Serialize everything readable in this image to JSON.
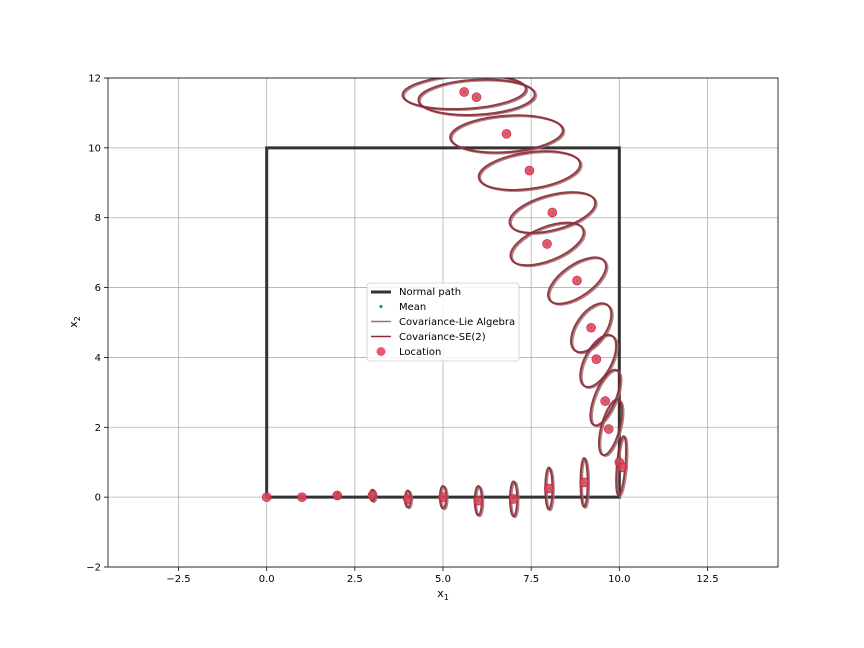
{
  "chart_data": {
    "type": "scatter",
    "xlabel": "x",
    "xlabel_sub": "1",
    "ylabel": "x",
    "ylabel_sub": "2",
    "xlim": [
      -4.5,
      14.5
    ],
    "ylim": [
      -2,
      12
    ],
    "grid": true,
    "legend_position": "center",
    "x_ticks": [
      -2.5,
      0.0,
      2.5,
      5.0,
      7.5,
      10.0,
      12.5
    ],
    "x_tick_labels": [
      "−2.5",
      "0.0",
      "2.5",
      "5.0",
      "7.5",
      "10.0",
      "12.5"
    ],
    "y_ticks": [
      -2,
      0,
      2,
      4,
      6,
      8,
      10,
      12
    ],
    "y_tick_labels": [
      "−2",
      "0",
      "2",
      "4",
      "6",
      "8",
      "10",
      "12"
    ],
    "colors": {
      "normal_path": "#333333",
      "mean": "#2ca02c",
      "cov_lie": "#a07070",
      "cov_se2": "#8b2a36",
      "location": "#e8385a"
    },
    "series": [
      {
        "name": "Normal path",
        "kind": "line",
        "points": [
          [
            0,
            0
          ],
          [
            10,
            0
          ],
          [
            10,
            10
          ],
          [
            0,
            10
          ],
          [
            0,
            0
          ]
        ]
      },
      {
        "name": "Mean",
        "kind": "points"
      },
      {
        "name": "Covariance-Lie Algebra",
        "kind": "ellipse"
      },
      {
        "name": "Covariance-SE(2)",
        "kind": "ellipse"
      },
      {
        "name": "Location",
        "kind": "scatter",
        "points": [
          [
            0.0,
            0.0
          ],
          [
            1.0,
            0.0
          ],
          [
            2.0,
            0.05
          ],
          [
            3.0,
            0.05
          ],
          [
            4.0,
            -0.05
          ],
          [
            5.0,
            0.0
          ],
          [
            6.0,
            -0.1
          ],
          [
            7.0,
            -0.05
          ],
          [
            8.0,
            0.25
          ],
          [
            9.0,
            0.42
          ],
          [
            10.0,
            1.0
          ],
          [
            10.1,
            0.85
          ],
          [
            9.7,
            1.95
          ],
          [
            9.6,
            2.75
          ],
          [
            9.35,
            3.95
          ],
          [
            9.2,
            4.85
          ],
          [
            8.8,
            6.2
          ],
          [
            7.95,
            7.25
          ],
          [
            8.1,
            8.15
          ],
          [
            7.45,
            9.35
          ],
          [
            6.8,
            10.4
          ],
          [
            5.95,
            11.45
          ],
          [
            5.6,
            11.6
          ]
        ]
      }
    ],
    "ellipses": [
      {
        "cx": 0.0,
        "cy": 0.0,
        "rx": 0.02,
        "ry": 0.02,
        "angle": 0
      },
      {
        "cx": 1.0,
        "cy": 0.0,
        "rx": 0.04,
        "ry": 0.04,
        "angle": 0
      },
      {
        "cx": 2.0,
        "cy": 0.05,
        "rx": 0.05,
        "ry": 0.08,
        "angle": 0
      },
      {
        "cx": 3.0,
        "cy": 0.05,
        "rx": 0.07,
        "ry": 0.16,
        "angle": 0
      },
      {
        "cx": 4.0,
        "cy": -0.05,
        "rx": 0.08,
        "ry": 0.24,
        "angle": 0
      },
      {
        "cx": 5.0,
        "cy": 0.0,
        "rx": 0.09,
        "ry": 0.32,
        "angle": 0
      },
      {
        "cx": 6.0,
        "cy": -0.1,
        "rx": 0.1,
        "ry": 0.42,
        "angle": 0
      },
      {
        "cx": 7.0,
        "cy": -0.05,
        "rx": 0.1,
        "ry": 0.5,
        "angle": 0
      },
      {
        "cx": 8.0,
        "cy": 0.25,
        "rx": 0.1,
        "ry": 0.6,
        "angle": 0
      },
      {
        "cx": 9.0,
        "cy": 0.42,
        "rx": 0.1,
        "ry": 0.7,
        "angle": 0
      },
      {
        "cx": 10.05,
        "cy": 0.9,
        "rx": 0.12,
        "ry": 0.85,
        "angle": -5
      },
      {
        "cx": 9.75,
        "cy": 2.0,
        "rx": 0.26,
        "ry": 0.82,
        "angle": -15
      },
      {
        "cx": 9.6,
        "cy": 2.85,
        "rx": 0.3,
        "ry": 0.85,
        "angle": -22
      },
      {
        "cx": 9.4,
        "cy": 3.9,
        "rx": 0.38,
        "ry": 0.82,
        "angle": -28
      },
      {
        "cx": 9.2,
        "cy": 4.85,
        "rx": 0.42,
        "ry": 0.8,
        "angle": -35
      },
      {
        "cx": 8.8,
        "cy": 6.2,
        "rx": 0.95,
        "ry": 0.45,
        "angle": 35
      },
      {
        "cx": 7.95,
        "cy": 7.25,
        "rx": 1.1,
        "ry": 0.48,
        "angle": 22
      },
      {
        "cx": 8.1,
        "cy": 8.15,
        "rx": 1.25,
        "ry": 0.5,
        "angle": 15
      },
      {
        "cx": 7.45,
        "cy": 9.35,
        "rx": 1.45,
        "ry": 0.52,
        "angle": 8
      },
      {
        "cx": 6.8,
        "cy": 10.4,
        "rx": 1.6,
        "ry": 0.52,
        "angle": 4
      },
      {
        "cx": 5.95,
        "cy": 11.45,
        "rx": 1.65,
        "ry": 0.5,
        "angle": 3
      },
      {
        "cx": 5.6,
        "cy": 11.6,
        "rx": 1.75,
        "ry": 0.48,
        "angle": 3
      }
    ]
  }
}
